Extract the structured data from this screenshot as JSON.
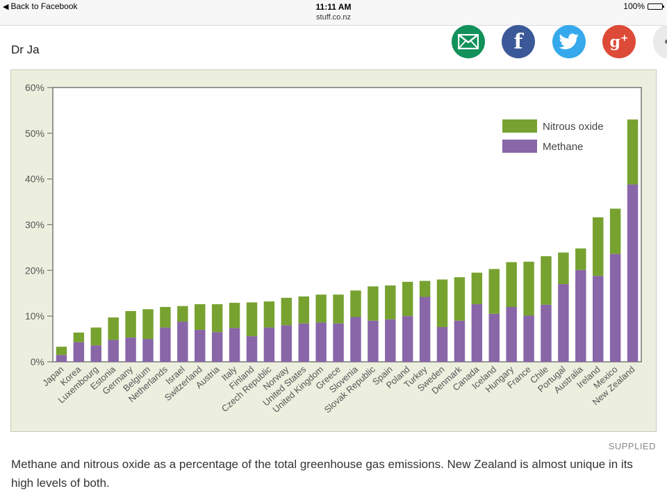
{
  "status_bar": {
    "back_label": "Back to Facebook",
    "time": "11:11 AM",
    "url": "stuff.co.nz",
    "battery": "100%",
    "battery_level": 1.0
  },
  "article": {
    "author": "Dr Ja",
    "credit": "SUPPLIED",
    "caption": "Methane and nitrous oxide as a percentage of the total greenhouse gas emissions. New Zealand is almost unique in its high levels of both."
  },
  "share": {
    "icons": [
      "email-icon",
      "facebook-icon",
      "twitter-icon",
      "google-plus-icon",
      "more-icon"
    ],
    "colors": {
      "email": "#12915a",
      "facebook": "#3b5998",
      "twitter": "#35a9ec",
      "google_plus": "#de4a38"
    }
  },
  "chart_data": {
    "type": "bar",
    "stacked": true,
    "title": "",
    "xlabel": "",
    "ylabel": "",
    "ylim": [
      0,
      60
    ],
    "yticks": [
      "0%",
      "10%",
      "20%",
      "30%",
      "40%",
      "50%",
      "60%"
    ],
    "grid": false,
    "legend_position": "top-right",
    "categories": [
      "Japan",
      "Korea",
      "Luxembourg",
      "Estonia",
      "Germany",
      "Belgium",
      "Netherlands",
      "Israel",
      "Switzerland",
      "Austria",
      "Italy",
      "Finland",
      "Czech Republic",
      "Norway",
      "United States",
      "United Kingdom",
      "Greece",
      "Slovenia",
      "Slovak Republic",
      "Spain",
      "Poland",
      "Turkey",
      "Sweden",
      "Denmark",
      "Canada",
      "Iceland",
      "Hungary",
      "France",
      "Chile",
      "Portugal",
      "Australia",
      "Ireland",
      "Mexico",
      "New Zealand"
    ],
    "series": [
      {
        "name": "Methane",
        "color": "#8866a8",
        "values": [
          1.5,
          4.3,
          3.6,
          4.8,
          5.3,
          5.0,
          7.5,
          8.8,
          7.0,
          6.5,
          7.4,
          5.6,
          7.5,
          8.0,
          8.4,
          8.6,
          8.4,
          9.8,
          9.0,
          9.3,
          10.0,
          14.2,
          7.6,
          9.0,
          12.6,
          10.5,
          12.0,
          10.1,
          12.5,
          17.0,
          20.1,
          18.8,
          23.6,
          38.8
        ]
      },
      {
        "name": "Nitrous oxide",
        "color": "#77a230",
        "values": [
          1.8,
          2.1,
          3.9,
          4.9,
          5.8,
          6.5,
          4.5,
          3.4,
          5.6,
          6.1,
          5.5,
          7.4,
          5.7,
          6.0,
          5.9,
          6.1,
          6.3,
          5.8,
          7.5,
          7.4,
          7.5,
          3.5,
          10.4,
          9.5,
          6.9,
          9.8,
          9.8,
          11.8,
          10.6,
          6.9,
          4.7,
          12.8,
          9.9,
          14.2
        ]
      }
    ]
  }
}
